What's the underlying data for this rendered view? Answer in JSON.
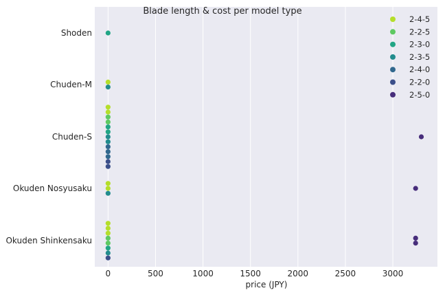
{
  "chart_data": {
    "type": "scatter",
    "title": "Blade length & cost per model type",
    "xlabel": "price (JPY)",
    "ylabel": "",
    "xlim": [
      -140,
      3470
    ],
    "xticks": [
      0,
      500,
      1000,
      1500,
      2000,
      2500,
      3000
    ],
    "categories": [
      "Shoden",
      "Chuden-M",
      "Chuden-S",
      "Okuden Nosyusaku",
      "Okuden Shinkensaku"
    ],
    "grid": true,
    "legend_position": "top-right",
    "series": [
      {
        "name": "2-4-5",
        "color": "#b5de2b",
        "points": [
          {
            "category": "Chuden-M",
            "x": 0
          },
          {
            "category": "Chuden-S",
            "x": 0
          },
          {
            "category": "Chuden-S",
            "x": 0
          },
          {
            "category": "Okuden Nosyusaku",
            "x": 0
          },
          {
            "category": "Okuden Nosyusaku",
            "x": 0
          },
          {
            "category": "Okuden Shinkensaku",
            "x": 0
          },
          {
            "category": "Okuden Shinkensaku",
            "x": 0
          },
          {
            "category": "Okuden Shinkensaku",
            "x": 0
          }
        ]
      },
      {
        "name": "2-2-5",
        "color": "#5ec962",
        "points": [
          {
            "category": "Chuden-S",
            "x": 0
          },
          {
            "category": "Chuden-S",
            "x": 0
          },
          {
            "category": "Okuden Shinkensaku",
            "x": 0
          },
          {
            "category": "Okuden Shinkensaku",
            "x": 0
          }
        ]
      },
      {
        "name": "2-3-0",
        "color": "#21a585",
        "points": [
          {
            "category": "Shoden",
            "x": 0
          },
          {
            "category": "Chuden-S",
            "x": 0
          },
          {
            "category": "Chuden-S",
            "x": 0
          },
          {
            "category": "Okuden Shinkensaku",
            "x": 0
          }
        ]
      },
      {
        "name": "2-3-5",
        "color": "#228c8d",
        "points": [
          {
            "category": "Chuden-M",
            "x": 0
          },
          {
            "category": "Chuden-S",
            "x": 0
          },
          {
            "category": "Chuden-S",
            "x": 0
          },
          {
            "category": "Okuden Nosyusaku",
            "x": 0
          },
          {
            "category": "Okuden Shinkensaku",
            "x": 0
          }
        ]
      },
      {
        "name": "2-4-0",
        "color": "#31688e",
        "points": [
          {
            "category": "Chuden-S",
            "x": 0
          },
          {
            "category": "Chuden-S",
            "x": 0
          },
          {
            "category": "Chuden-S",
            "x": 0
          }
        ]
      },
      {
        "name": "2-2-0",
        "color": "#3b4f8a",
        "points": [
          {
            "category": "Chuden-S",
            "x": 0
          },
          {
            "category": "Chuden-S",
            "x": 0
          },
          {
            "category": "Okuden Shinkensaku",
            "x": 0
          }
        ]
      },
      {
        "name": "2-5-0",
        "color": "#472d7b",
        "points": [
          {
            "category": "Chuden-S",
            "x": 3300
          },
          {
            "category": "Okuden Nosyusaku",
            "x": 3240
          },
          {
            "category": "Okuden Shinkensaku",
            "x": 3240
          },
          {
            "category": "Okuden Shinkensaku",
            "x": 3240
          }
        ]
      }
    ]
  }
}
